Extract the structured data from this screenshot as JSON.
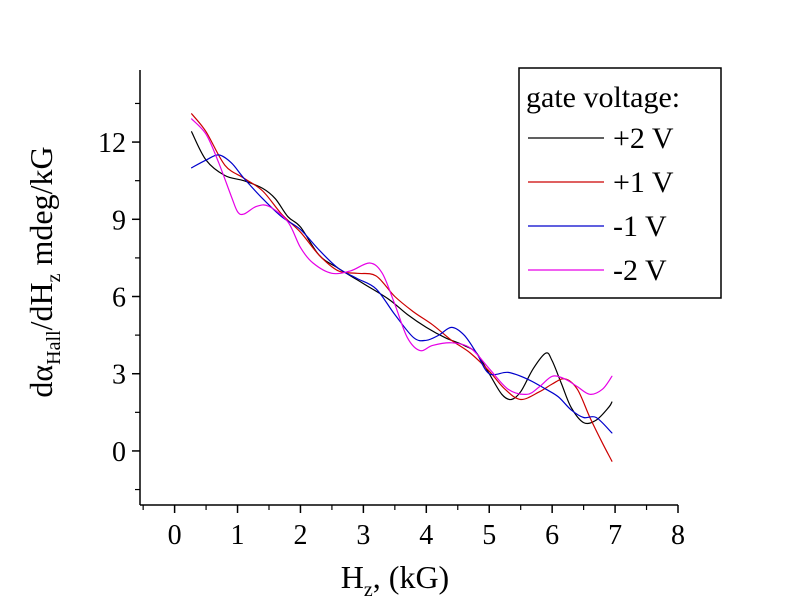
{
  "chart_data": {
    "type": "line",
    "xlabel": {
      "main": "H",
      "sub": "z",
      "tail": ", (kG)"
    },
    "ylabel": {
      "p1": "d",
      "alpha": "α",
      "sub1": "Hall",
      "p2": "/dH",
      "sub2": "z",
      "p3": " mdeg/kG"
    },
    "xlim": [
      -0.55,
      8.0
    ],
    "ylim": [
      -2.1,
      14.8
    ],
    "x_ticks": [
      0,
      1,
      2,
      3,
      4,
      5,
      6,
      7,
      8
    ],
    "y_ticks": [
      0,
      3,
      6,
      9,
      12
    ],
    "x_tick_labels": [
      "0",
      "1",
      "2",
      "3",
      "4",
      "5",
      "6",
      "7",
      "8"
    ],
    "y_tick_labels": [
      "0",
      "3",
      "6",
      "9",
      "12"
    ],
    "legend": {
      "title": "gate voltage:",
      "placement": "top-right"
    },
    "series": [
      {
        "name": "+2 V",
        "color": "#000000",
        "x": [
          0.27,
          0.5,
          0.8,
          1.1,
          1.4,
          1.6,
          1.8,
          2.0,
          2.3,
          2.6,
          3.0,
          3.4,
          3.7,
          4.0,
          4.3,
          4.6,
          4.8,
          5.0,
          5.2,
          5.35,
          5.5,
          5.7,
          5.9,
          6.0,
          6.15,
          6.3,
          6.5,
          6.7,
          6.9,
          6.95
        ],
        "y": [
          12.4,
          11.3,
          10.7,
          10.5,
          10.2,
          9.8,
          9.1,
          8.7,
          7.6,
          7.1,
          6.5,
          5.9,
          5.3,
          4.8,
          4.4,
          4.1,
          3.8,
          3.0,
          2.2,
          2.0,
          2.3,
          3.2,
          3.8,
          3.5,
          2.6,
          1.7,
          1.1,
          1.2,
          1.7,
          1.9
        ]
      },
      {
        "name": "+1 V",
        "color": "#cc0000",
        "x": [
          0.27,
          0.5,
          0.8,
          1.1,
          1.4,
          1.7,
          2.0,
          2.3,
          2.6,
          2.9,
          3.2,
          3.5,
          3.8,
          4.1,
          4.4,
          4.7,
          5.0,
          5.25,
          5.5,
          5.8,
          6.0,
          6.2,
          6.4,
          6.6,
          6.8,
          6.95
        ],
        "y": [
          13.1,
          12.4,
          11.1,
          10.6,
          10.1,
          9.2,
          8.5,
          7.6,
          7.0,
          6.9,
          6.8,
          6.0,
          5.4,
          4.9,
          4.3,
          3.8,
          3.1,
          2.4,
          2.0,
          2.3,
          2.6,
          2.8,
          2.4,
          1.3,
          0.3,
          -0.4
        ]
      },
      {
        "name": "-1 V",
        "color": "#0000cc",
        "x": [
          0.27,
          0.5,
          0.7,
          0.9,
          1.1,
          1.4,
          1.7,
          2.0,
          2.3,
          2.6,
          2.9,
          3.2,
          3.5,
          3.8,
          4.0,
          4.2,
          4.4,
          4.6,
          4.8,
          5.0,
          5.3,
          5.6,
          5.9,
          6.1,
          6.3,
          6.5,
          6.7,
          6.95
        ],
        "y": [
          11.0,
          11.3,
          11.5,
          11.2,
          10.6,
          9.8,
          9.1,
          8.6,
          7.8,
          7.1,
          6.7,
          6.3,
          5.3,
          4.4,
          4.3,
          4.5,
          4.8,
          4.5,
          3.8,
          3.0,
          3.05,
          2.8,
          2.4,
          2.1,
          1.6,
          1.3,
          1.3,
          0.7
        ]
      },
      {
        "name": "-2 V",
        "color": "#e600e6",
        "x": [
          0.27,
          0.5,
          0.7,
          0.9,
          1.0,
          1.1,
          1.3,
          1.5,
          1.8,
          2.0,
          2.2,
          2.5,
          2.8,
          3.1,
          3.3,
          3.5,
          3.7,
          3.9,
          4.1,
          4.4,
          4.7,
          5.0,
          5.3,
          5.6,
          5.8,
          6.0,
          6.2,
          6.4,
          6.6,
          6.8,
          6.95
        ],
        "y": [
          12.9,
          12.3,
          11.2,
          9.9,
          9.3,
          9.2,
          9.5,
          9.5,
          8.9,
          7.9,
          7.3,
          6.9,
          7.0,
          7.3,
          6.9,
          5.7,
          4.4,
          3.9,
          4.1,
          4.2,
          4.0,
          3.2,
          2.4,
          2.2,
          2.5,
          2.9,
          2.8,
          2.5,
          2.2,
          2.4,
          2.9
        ]
      }
    ]
  }
}
